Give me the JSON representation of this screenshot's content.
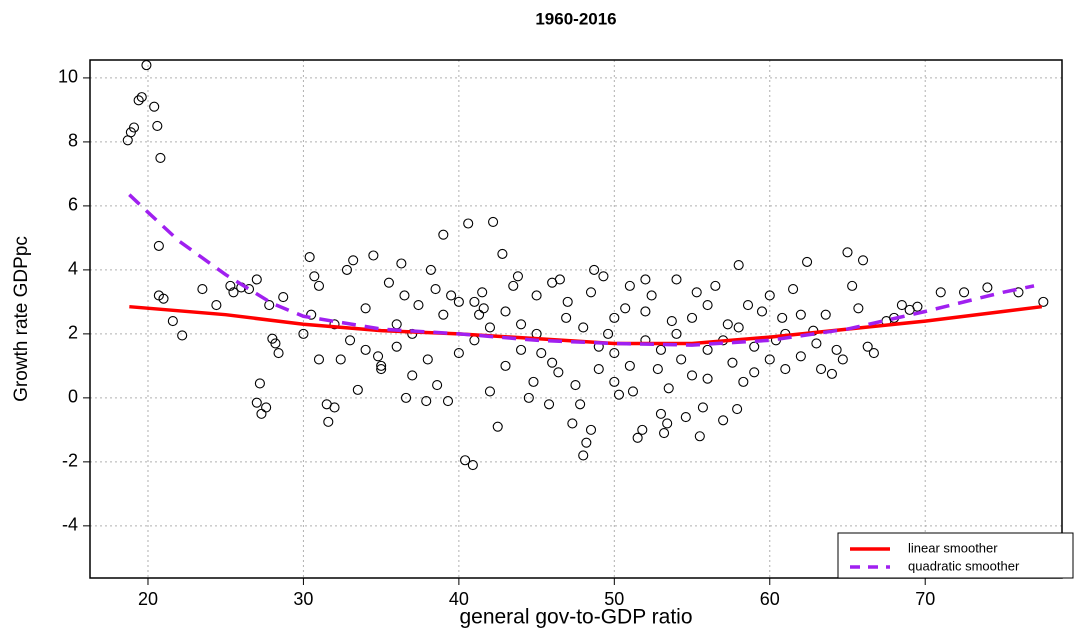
{
  "chart_data": {
    "type": "scatter",
    "title": "1960-2016",
    "x_label": "general gov-to-GDP ratio",
    "y_label": "Growth rate GDPpc",
    "xlim": [
      16.27,
      78.8
    ],
    "ylim": [
      -5.63,
      10.56
    ],
    "xticks": [
      20,
      30,
      40,
      50,
      60,
      70
    ],
    "yticks": [
      -4,
      -2,
      0,
      2,
      4,
      6,
      8,
      10
    ],
    "grid": true,
    "legend_position": "lower right",
    "point_color": "#000000",
    "x": [
      18.7,
      18.9,
      19.1,
      19.4,
      19.6,
      19.9,
      20.4,
      20.6,
      20.8,
      20.7,
      20.7,
      21,
      21.6,
      22.2,
      23.5,
      24.4,
      25.3,
      25.5,
      26,
      26.5,
      27,
      27.2,
      27,
      27.3,
      27.6,
      28,
      28.2,
      28.4,
      27.8,
      28.7,
      30,
      30.4,
      30.7,
      31,
      31.5,
      31.6,
      32,
      32.4,
      32.8,
      33.2,
      33.5,
      34,
      34.5,
      34.8,
      35,
      35.5,
      36,
      36.3,
      36.6,
      37,
      37.4,
      37.9,
      38.2,
      38.6,
      39,
      39.3,
      39.5,
      40,
      40.4,
      40.6,
      40.9,
      41,
      41.3,
      41.6,
      42,
      42.2,
      42.5,
      42.8,
      43,
      43.5,
      44,
      44.5,
      45,
      45.3,
      45.8,
      46,
      46.4,
      46.9,
      47.3,
      47.8,
      48,
      48.2,
      48.5,
      48.7,
      49,
      49.3,
      49.6,
      50,
      50.3,
      50.7,
      51,
      51.2,
      51.5,
      51.8,
      52,
      52.4,
      52.8,
      53,
      53.2,
      53.4,
      53.7,
      54,
      54.3,
      54.6,
      55,
      55.3,
      55.5,
      55.7,
      56,
      56.5,
      57,
      57.3,
      57.6,
      57.9,
      58,
      58.3,
      58.6,
      59,
      59.5,
      60,
      60.4,
      60.8,
      61,
      61.5,
      62,
      62.4,
      62.8,
      63.3,
      63.6,
      64,
      64.3,
      64.7,
      65,
      65.3,
      65.7,
      66,
      66.3,
      66.7,
      67.5,
      68,
      68.5,
      69,
      69.5,
      71,
      72.5,
      74,
      76,
      77.6,
      35,
      36,
      37,
      38,
      39,
      40,
      41,
      42,
      43,
      44,
      45,
      46,
      47,
      48,
      49,
      50,
      51,
      52,
      53,
      54,
      55,
      56,
      57,
      58,
      59,
      60,
      61,
      62,
      63,
      33,
      34,
      32,
      31,
      30.5,
      36.5,
      38.5,
      41.5,
      43.8,
      46.5,
      48.5,
      52,
      56,
      44.8,
      47.5,
      50,
      53.5
    ],
    "values": [
      8.05,
      8.3,
      8.45,
      9.3,
      9.4,
      10.4,
      9.1,
      8.5,
      7.5,
      4.75,
      3.2,
      3.1,
      2.4,
      1.95,
      3.4,
      2.9,
      3.5,
      3.3,
      3.45,
      3.4,
      3.7,
      0.45,
      -0.15,
      -0.5,
      -0.3,
      1.85,
      1.7,
      1.4,
      2.9,
      3.15,
      2.0,
      4.4,
      3.8,
      3.5,
      -0.2,
      -0.75,
      -0.3,
      1.2,
      4.0,
      4.3,
      0.25,
      2.8,
      4.45,
      1.3,
      0.9,
      3.6,
      2.3,
      4.2,
      0.0,
      0.7,
      2.9,
      -0.1,
      4.0,
      0.4,
      5.1,
      -0.1,
      3.2,
      1.4,
      -1.95,
      5.45,
      -2.1,
      3.0,
      2.6,
      2.8,
      0.2,
      5.5,
      -0.9,
      4.5,
      1.0,
      3.5,
      2.3,
      0.0,
      3.2,
      1.4,
      -0.2,
      3.6,
      0.8,
      2.5,
      -0.8,
      -0.2,
      -1.8,
      -1.4,
      -1.0,
      4.0,
      0.9,
      3.8,
      2.0,
      1.4,
      0.1,
      2.8,
      3.5,
      0.2,
      -1.25,
      -1.0,
      1.8,
      3.2,
      0.9,
      -0.5,
      -1.1,
      -0.8,
      2.4,
      3.7,
      1.2,
      -0.6,
      0.7,
      3.3,
      -1.2,
      -0.3,
      1.5,
      3.5,
      -0.7,
      2.3,
      1.1,
      -0.35,
      4.15,
      0.5,
      2.9,
      1.6,
      2.7,
      3.2,
      1.8,
      2.5,
      0.9,
      3.4,
      1.3,
      4.25,
      2.1,
      0.9,
      2.6,
      0.75,
      1.5,
      1.2,
      4.55,
      3.5,
      2.8,
      4.3,
      1.6,
      1.4,
      2.4,
      2.5,
      2.9,
      2.75,
      2.85,
      3.3,
      3.3,
      3.45,
      3.3,
      3.0,
      1.0,
      1.6,
      2.0,
      1.2,
      2.6,
      3.0,
      1.8,
      2.2,
      2.7,
      1.5,
      2.0,
      1.1,
      3.0,
      2.2,
      1.6,
      2.5,
      1.0,
      2.7,
      1.5,
      2.0,
      2.5,
      0.6,
      1.8,
      2.2,
      0.8,
      1.2,
      2.0,
      2.6,
      1.7,
      1.8,
      1.5,
      2.3,
      1.2,
      2.6,
      3.2,
      3.4,
      3.3,
      3.8,
      3.7,
      3.3,
      3.7,
      2.9,
      0.5,
      0.4,
      0.5,
      0.3
    ],
    "lines": [
      {
        "name": "linear smoother",
        "color": "#ff0000",
        "dashed": false,
        "x": [
          18.8,
          25,
          30,
          35,
          40,
          45,
          50,
          55,
          60,
          65,
          70,
          75,
          77.5
        ],
        "values": [
          2.85,
          2.6,
          2.3,
          2.1,
          2.0,
          1.85,
          1.7,
          1.7,
          1.9,
          2.15,
          2.4,
          2.7,
          2.85
        ]
      },
      {
        "name": "quadratic smoother",
        "color": "#a020f0",
        "dashed": true,
        "x": [
          18.8,
          20,
          22,
          25,
          28,
          30,
          35,
          40,
          45,
          50,
          55,
          60,
          65,
          70,
          75,
          77
        ],
        "values": [
          6.35,
          5.8,
          4.9,
          3.85,
          2.95,
          2.55,
          2.15,
          2.0,
          1.8,
          1.7,
          1.65,
          1.8,
          2.15,
          2.7,
          3.3,
          3.5
        ]
      }
    ]
  }
}
